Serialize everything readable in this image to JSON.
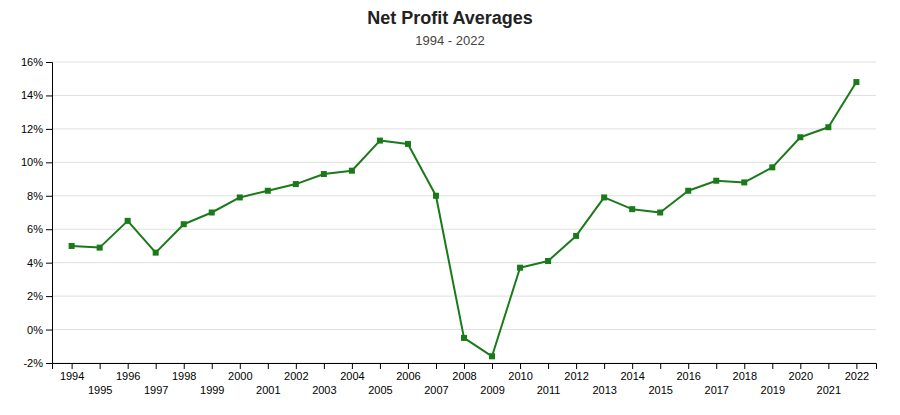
{
  "chart_data": {
    "type": "line",
    "title": "Net Profit Averages",
    "subtitle": "1994 - 2022",
    "x": [
      1994,
      1995,
      1996,
      1997,
      1998,
      1999,
      2000,
      2001,
      2002,
      2003,
      2004,
      2005,
      2006,
      2007,
      2008,
      2009,
      2010,
      2011,
      2012,
      2013,
      2014,
      2015,
      2016,
      2017,
      2018,
      2019,
      2020,
      2021,
      2022
    ],
    "values": [
      0.05,
      0.049,
      0.065,
      0.046,
      0.063,
      0.07,
      0.079,
      0.083,
      0.087,
      0.093,
      0.095,
      0.113,
      0.111,
      0.08,
      -0.005,
      -0.016,
      0.037,
      0.041,
      0.056,
      0.079,
      0.072,
      0.07,
      0.083,
      0.089,
      0.088,
      0.097,
      0.115,
      0.121,
      0.148
    ],
    "color": "#1a7a1a",
    "marker": "square",
    "xlim": [
      1993.3,
      2022.7
    ],
    "xticks": [
      1994,
      1995,
      1996,
      1997,
      1998,
      1999,
      2000,
      2001,
      2002,
      2003,
      2004,
      2005,
      2006,
      2007,
      2008,
      2009,
      2010,
      2011,
      2012,
      2013,
      2014,
      2015,
      2016,
      2017,
      2018,
      2019,
      2020,
      2021,
      2022
    ],
    "ylim": [
      -0.02,
      0.16
    ],
    "yticks": [
      {
        "value": -0.02,
        "label": "-2%"
      },
      {
        "value": 0,
        "label": "0%"
      },
      {
        "value": 0.02,
        "label": "2%"
      },
      {
        "value": 0.04,
        "label": "4%"
      },
      {
        "value": 0.06,
        "label": "6%"
      },
      {
        "value": 0.08,
        "label": "8%"
      },
      {
        "value": 0.1,
        "label": "10%"
      },
      {
        "value": 0.12,
        "label": "12%"
      },
      {
        "value": 0.14,
        "label": "14%"
      },
      {
        "value": 0.16,
        "label": "16%"
      }
    ],
    "grid": true
  }
}
